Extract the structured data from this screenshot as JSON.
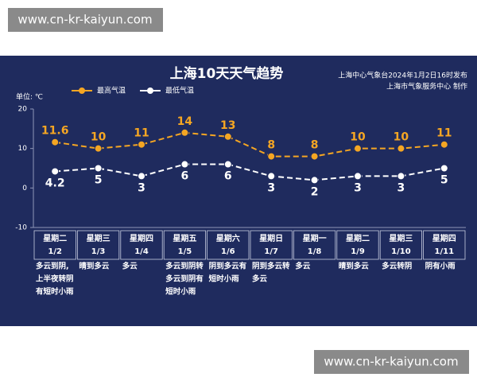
{
  "watermarks": [
    "www.cn-kr-kaiyun.com",
    "www.cn-kr-kaiyun.com"
  ],
  "chart_data": {
    "type": "line",
    "title": "上海10天天气趋势",
    "source": [
      "上海中心气象台2024年1月2日16时发布",
      "上海市气象服务中心 制作"
    ],
    "y_unit": "单位: ℃",
    "categories": [
      "星期二",
      "星期三",
      "星期四",
      "星期五",
      "星期六",
      "星期日",
      "星期一",
      "星期二",
      "星期三",
      "星期四"
    ],
    "dates": [
      "1/2",
      "1/3",
      "1/4",
      "1/5",
      "1/6",
      "1/7",
      "1/8",
      "1/9",
      "1/10",
      "1/11"
    ],
    "weather": [
      [
        "多云到阴,",
        "上半夜转阴",
        "有短时小雨"
      ],
      [
        "晴到多云"
      ],
      [
        "多云"
      ],
      [
        "多云到阴转",
        "多云到阴有",
        "短时小雨"
      ],
      [
        "阴到多云有",
        "短时小雨"
      ],
      [
        "阴到多云转",
        "多云"
      ],
      [
        "多云"
      ],
      [
        "晴到多云"
      ],
      [
        "多云转阴"
      ],
      [
        "阴有小雨"
      ]
    ],
    "series": [
      {
        "name": "最高气温",
        "color": "#f5a623",
        "values": [
          11.6,
          10,
          11,
          14,
          13,
          8,
          8,
          10,
          10,
          11
        ],
        "label_pos": "above"
      },
      {
        "name": "最低气温",
        "color": "#ffffff",
        "values": [
          4.2,
          5,
          3,
          6,
          6,
          3,
          2,
          3,
          3,
          5
        ],
        "label_pos": "below"
      }
    ],
    "ylim": [
      -10,
      20
    ],
    "yticks": [
      -10,
      0,
      10,
      20
    ],
    "grid": false
  }
}
